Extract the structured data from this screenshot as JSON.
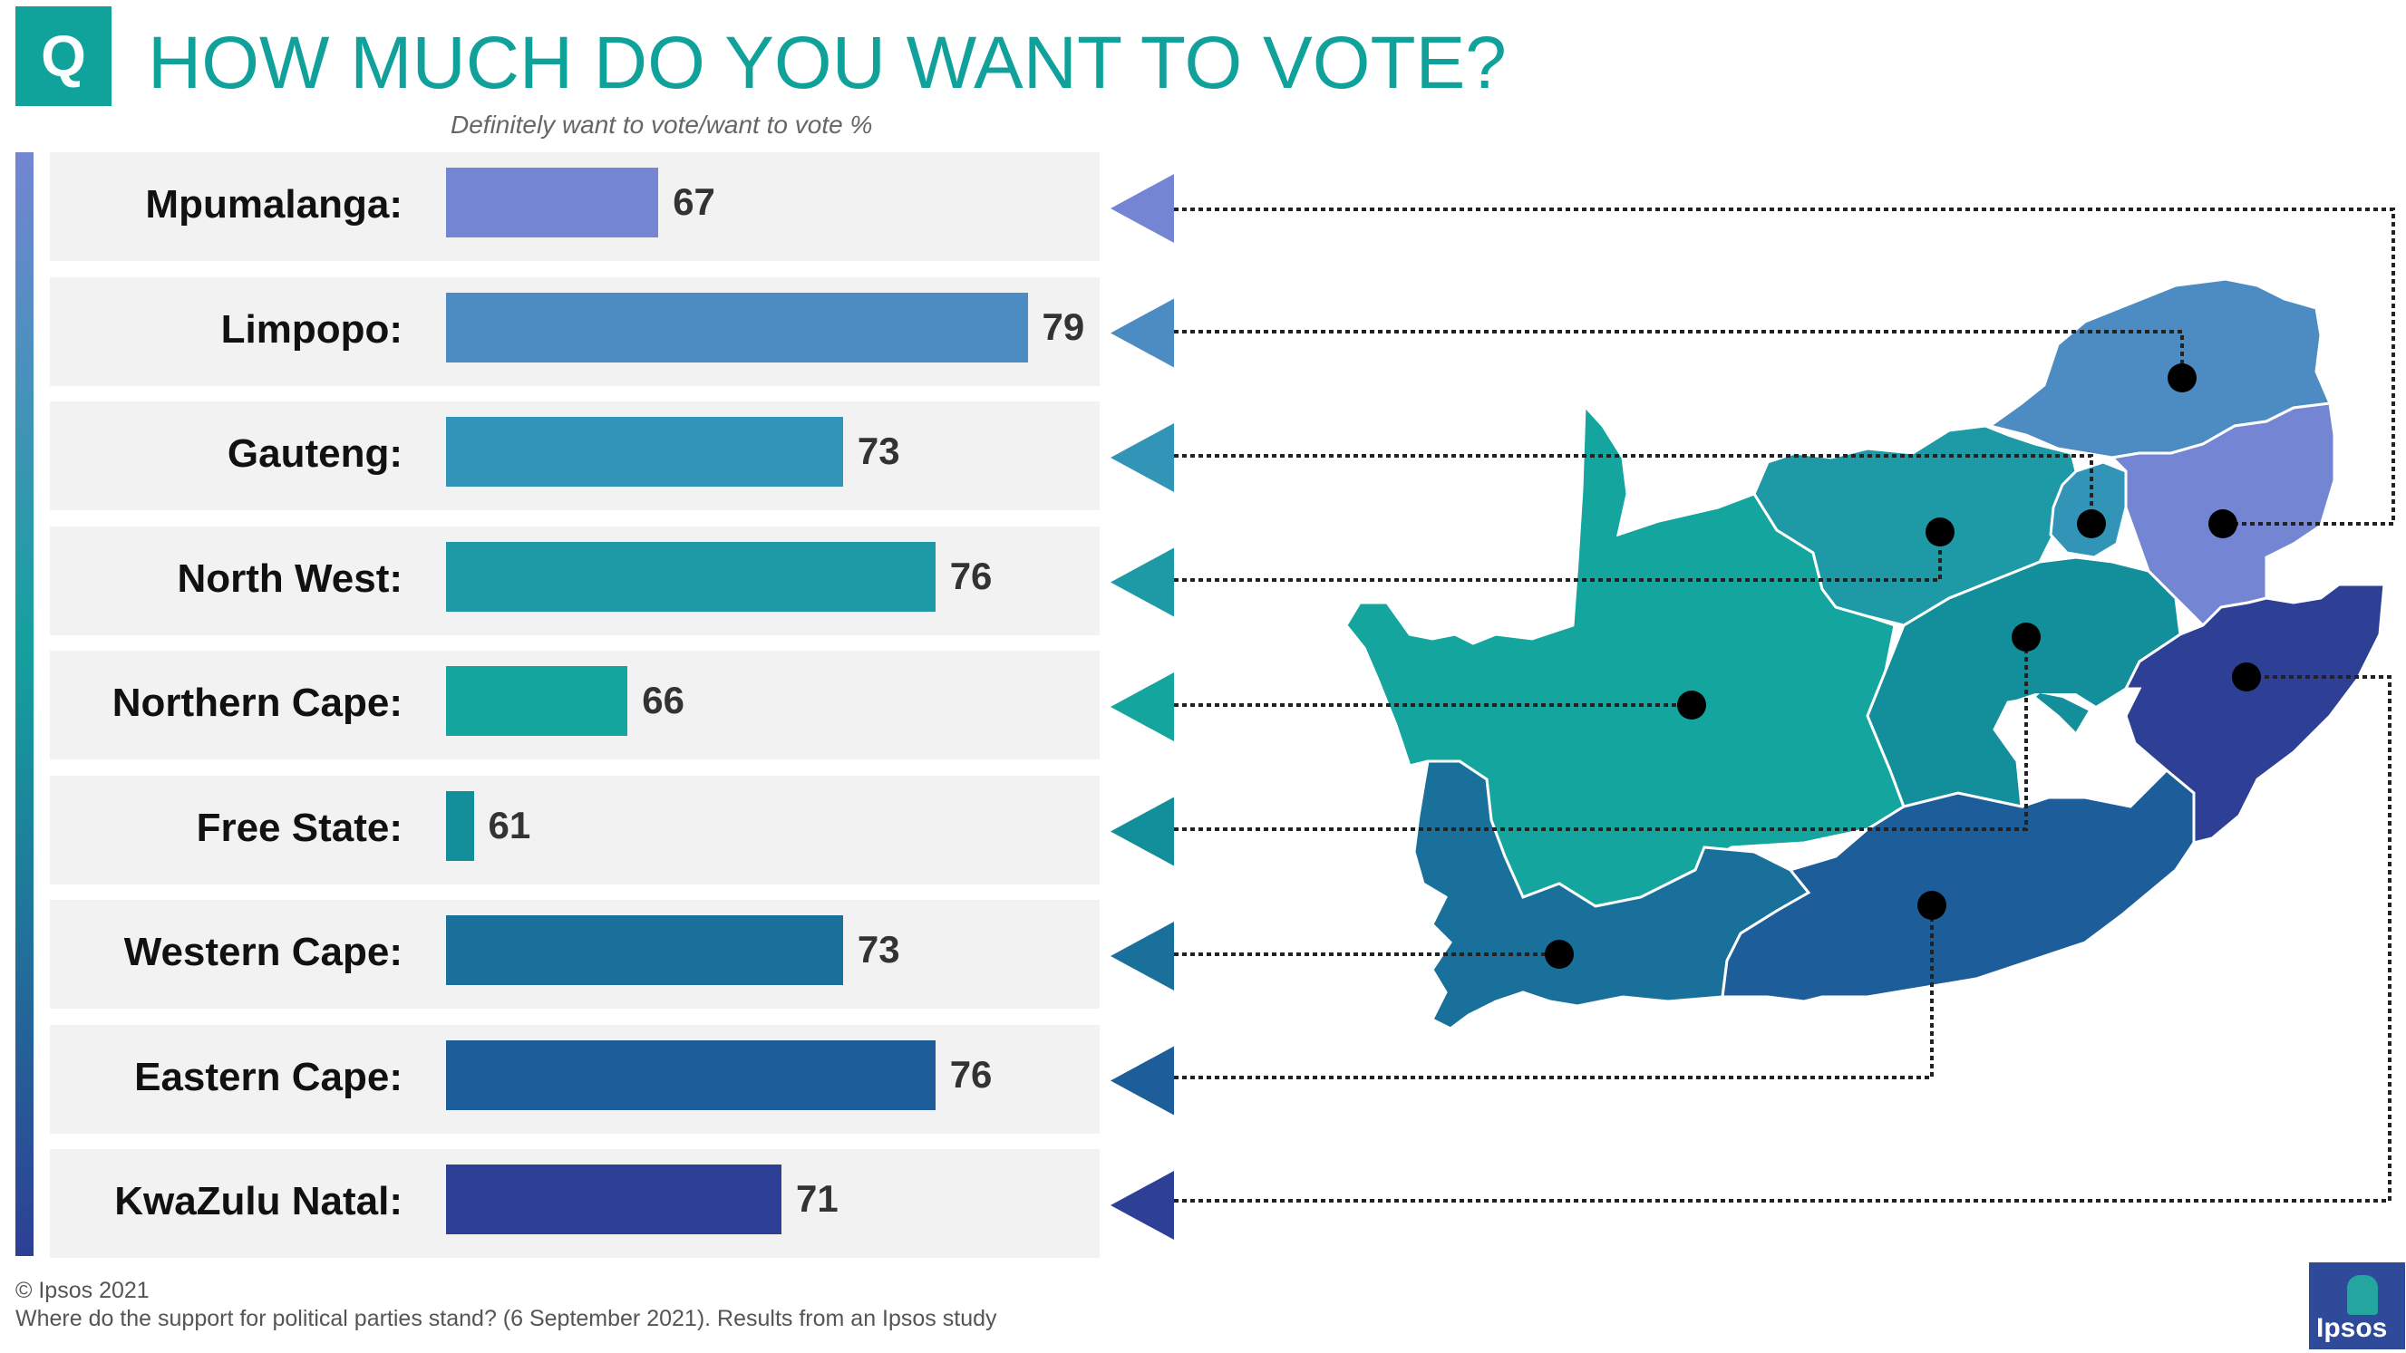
{
  "header": {
    "q_badge": "Q",
    "title": "HOW MUCH DO YOU WANT TO VOTE?",
    "subtitle": "Definitely want to vote/want to vote %"
  },
  "chart_data": {
    "type": "bar",
    "orientation": "horizontal",
    "title": "HOW MUCH DO YOU WANT TO VOTE?",
    "subtitle": "Definitely want to vote/want to vote %",
    "categories": [
      "Mpumalanga:",
      "Limpopo:",
      "Gauteng:",
      "North West:",
      "Northern Cape:",
      "Free State:",
      "Western Cape:",
      "Eastern Cape:",
      "KwaZulu Natal:"
    ],
    "values": [
      67,
      79,
      73,
      76,
      66,
      61,
      73,
      76,
      71
    ],
    "xlim": [
      58,
      84
    ],
    "grid": false,
    "legend": "none",
    "colors": [
      "#7485d4",
      "#4c8cc2",
      "#3294b7",
      "#1d9aa6",
      "#13a59e",
      "#138f9b",
      "#19709b",
      "#1d5d99",
      "#2e3f96"
    ]
  },
  "map": {
    "colors": {
      "mpumalanga": "#7485d4",
      "limpopo": "#4c8cc2",
      "gauteng": "#3294b7",
      "north_west": "#1d9aa6",
      "northern_cape": "#13a59e",
      "free_state": "#138f9b",
      "western_cape": "#19709b",
      "eastern_cape": "#1d5d99",
      "kwazulu_natal": "#2e3f96"
    }
  },
  "footer": {
    "copyright": "© Ipsos 2021",
    "source": "Where do the support for political parties stand? (6 September 2021). Results from an Ipsos study"
  },
  "logo": {
    "text": "Ipsos"
  }
}
